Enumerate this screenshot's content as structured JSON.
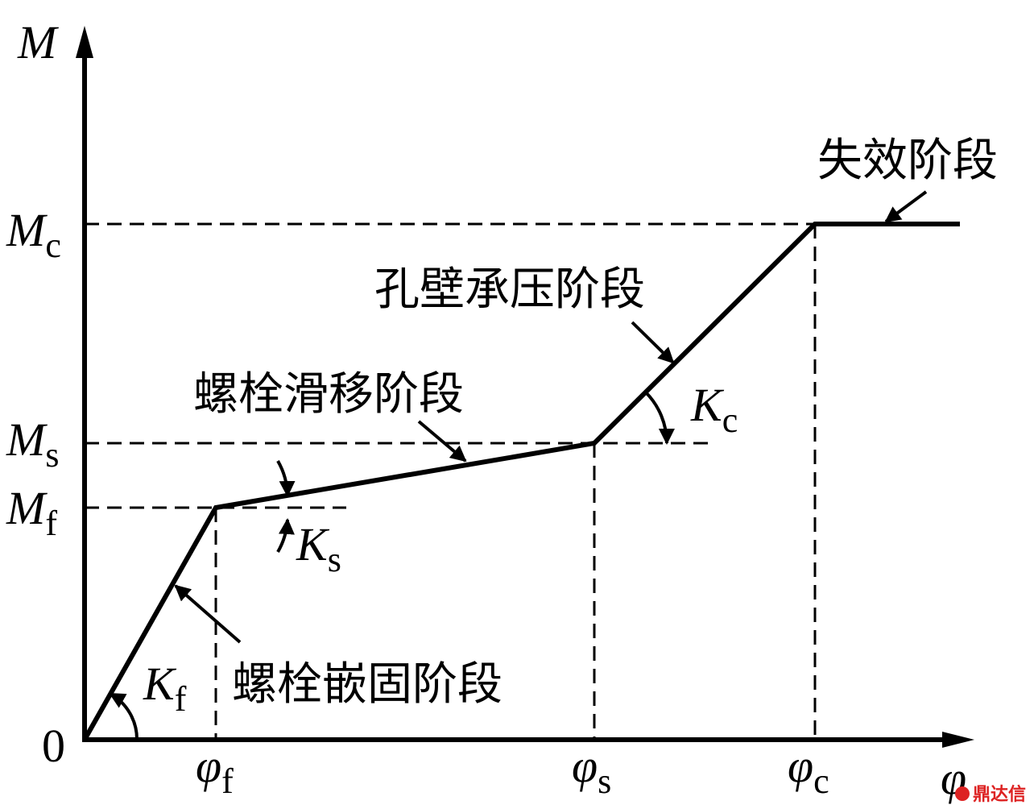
{
  "axes": {
    "y_label": "M",
    "x_label": "φ",
    "origin": "0"
  },
  "y_marks": [
    {
      "main": "M",
      "sub": "c"
    },
    {
      "main": "M",
      "sub": "s"
    },
    {
      "main": "M",
      "sub": "f"
    }
  ],
  "x_marks": [
    {
      "main": "φ",
      "sub": "f"
    },
    {
      "main": "φ",
      "sub": "s"
    },
    {
      "main": "φ",
      "sub": "c"
    }
  ],
  "stiffness": [
    {
      "main": "K",
      "sub": "f"
    },
    {
      "main": "K",
      "sub": "s"
    },
    {
      "main": "K",
      "sub": "c"
    }
  ],
  "stages": [
    "螺栓嵌固阶段",
    "螺栓滑移阶段",
    "孔壁承压阶段",
    "失效阶段"
  ],
  "watermark": "鼎达信"
}
